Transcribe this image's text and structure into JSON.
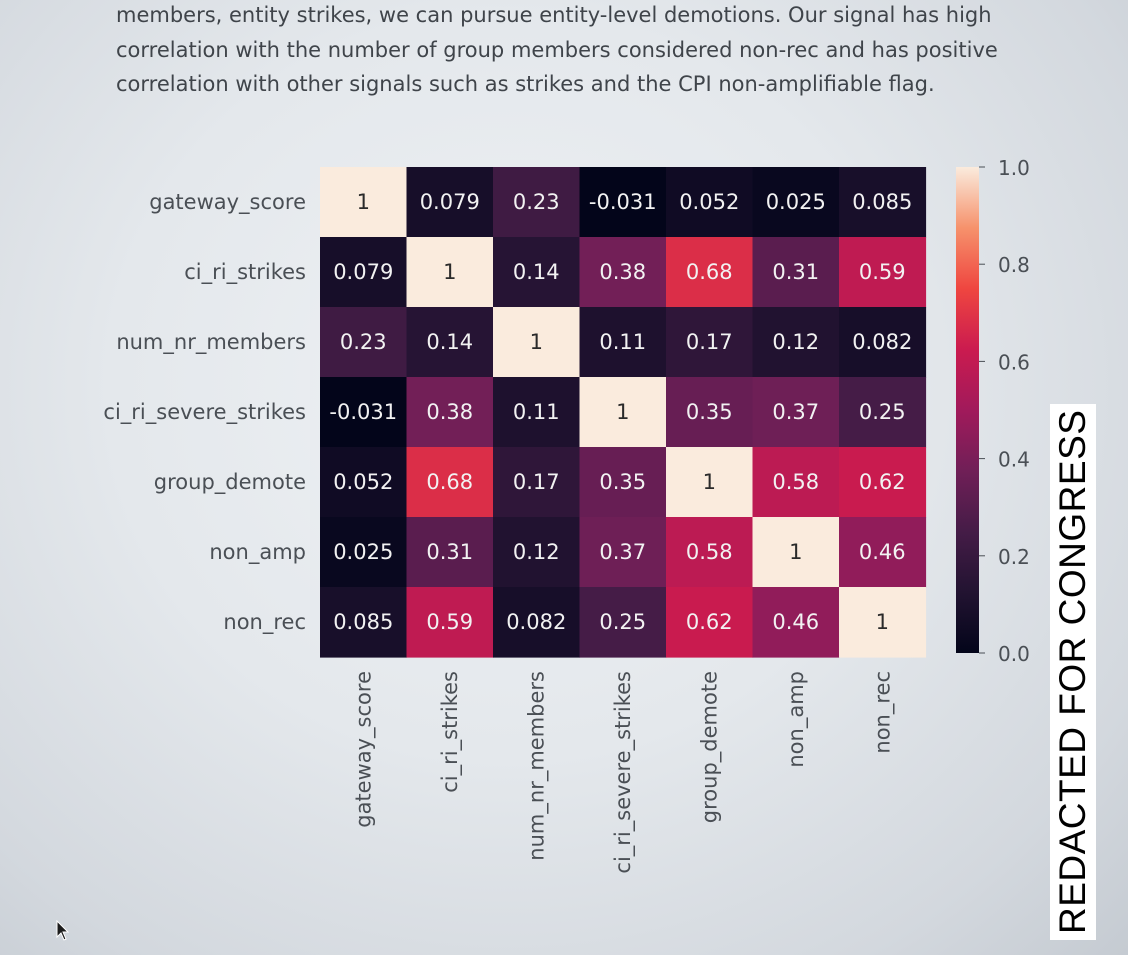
{
  "document": {
    "paragraph_lines": [
      "members, entity strikes, we can pursue entity-level demotions. Our signal has high",
      "correlation with the number of group members considered non-rec and has positive",
      "correlation with other signals such as strikes and the CPI non-amplifiable flag."
    ]
  },
  "chart_data": {
    "type": "heatmap",
    "title": "",
    "row_labels": [
      "gateway_score",
      "ci_ri_strikes",
      "num_nr_members",
      "ci_ri_severe_strikes",
      "group_demote",
      "non_amp",
      "non_rec"
    ],
    "col_labels": [
      "gateway_score",
      "ci_ri_strikes",
      "num_nr_members",
      "ci_ri_severe_strikes",
      "group_demote",
      "non_amp",
      "non_rec"
    ],
    "values": [
      [
        1,
        0.079,
        0.23,
        -0.031,
        0.052,
        0.025,
        0.085
      ],
      [
        0.079,
        1,
        0.14,
        0.38,
        0.68,
        0.31,
        0.59
      ],
      [
        0.23,
        0.14,
        1,
        0.11,
        0.17,
        0.12,
        0.082
      ],
      [
        -0.031,
        0.38,
        0.11,
        1,
        0.35,
        0.37,
        0.25
      ],
      [
        0.052,
        0.68,
        0.17,
        0.35,
        1,
        0.58,
        0.62
      ],
      [
        0.025,
        0.31,
        0.12,
        0.37,
        0.58,
        1,
        0.46
      ],
      [
        0.085,
        0.59,
        0.082,
        0.25,
        0.62,
        0.46,
        1
      ]
    ],
    "value_labels": [
      [
        "1",
        "0.079",
        "0.23",
        "-0.031",
        "0.052",
        "0.025",
        "0.085"
      ],
      [
        "0.079",
        "1",
        "0.14",
        "0.38",
        "0.68",
        "0.31",
        "0.59"
      ],
      [
        "0.23",
        "0.14",
        "1",
        "0.11",
        "0.17",
        "0.12",
        "0.082"
      ],
      [
        "-0.031",
        "0.38",
        "0.11",
        "1",
        "0.35",
        "0.37",
        "0.25"
      ],
      [
        "0.052",
        "0.68",
        "0.17",
        "0.35",
        "1",
        "0.58",
        "0.62"
      ],
      [
        "0.025",
        "0.31",
        "0.12",
        "0.37",
        "0.58",
        "1",
        "0.46"
      ],
      [
        "0.085",
        "0.59",
        "0.082",
        "0.25",
        "0.62",
        "0.46",
        "1"
      ]
    ],
    "colormap": "rocket",
    "vmin": 0.0,
    "vmax": 1.0,
    "colorbar_ticks": [
      1.0,
      0.8,
      0.6,
      0.4,
      0.2,
      0.0
    ],
    "colorbar_tick_labels": [
      "1.0",
      "0.8",
      "0.6",
      "0.4",
      "0.2",
      "0.0"
    ],
    "annotations": true
  },
  "overlay": {
    "redaction_text": "REDACTED FOR CONGRESS"
  },
  "colors": {
    "label_text": "#4a4f55",
    "annotation_light": "#f2f2f2",
    "annotation_dark": "#2a2a2a"
  },
  "icons": {
    "cursor": "mouse-pointer-icon"
  }
}
